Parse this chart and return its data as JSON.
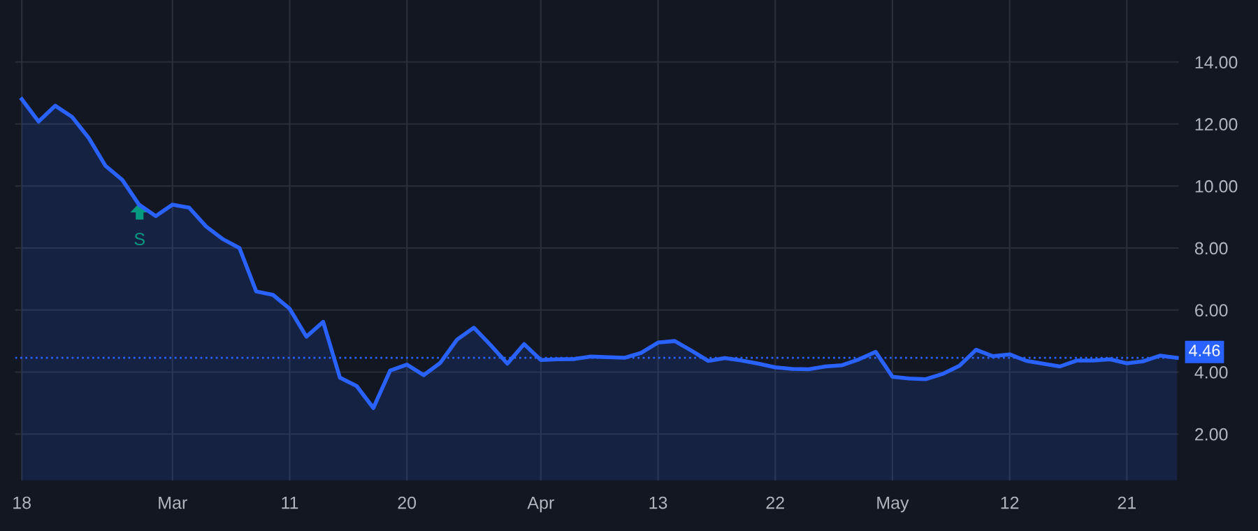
{
  "chart_data": {
    "type": "area",
    "categories": [
      "18",
      null,
      null,
      null,
      null,
      null,
      null,
      null,
      null,
      "Mar",
      null,
      null,
      null,
      null,
      null,
      null,
      "11",
      null,
      null,
      null,
      null,
      null,
      null,
      "20",
      null,
      null,
      null,
      null,
      null,
      null,
      null,
      "Apr",
      null,
      null,
      null,
      null,
      null,
      null,
      "13",
      null,
      null,
      null,
      null,
      null,
      null,
      "22",
      null,
      null,
      null,
      null,
      null,
      null,
      "May",
      null,
      null,
      null,
      null,
      null,
      null,
      "12",
      null,
      null,
      null,
      null,
      null,
      null,
      "21",
      null,
      null,
      null
    ],
    "series": [
      {
        "color": "#2962ff",
        "values": [
          12.8,
          12.08,
          12.59,
          12.23,
          11.55,
          10.65,
          10.2,
          9.4,
          9.03,
          9.4,
          9.3,
          8.7,
          8.29,
          8.0,
          6.6,
          6.49,
          6.04,
          5.14,
          5.62,
          3.82,
          3.55,
          2.84,
          4.05,
          4.24,
          3.9,
          4.3,
          5.05,
          5.43,
          4.87,
          4.27,
          4.9,
          4.39,
          4.41,
          4.42,
          4.5,
          4.48,
          4.46,
          4.62,
          4.95,
          5.0,
          4.69,
          4.36,
          4.45,
          4.37,
          4.27,
          4.15,
          4.1,
          4.09,
          4.18,
          4.22,
          4.41,
          4.65,
          3.85,
          3.79,
          3.77,
          3.94,
          4.2,
          4.72,
          4.51,
          4.57,
          4.36,
          4.27,
          4.18,
          4.37,
          4.37,
          4.41,
          4.28,
          4.35,
          4.53,
          4.46
        ]
      }
    ],
    "ylim": [
      0.5,
      16
    ],
    "yticks": [
      {
        "value": 2,
        "label": "2.00"
      },
      {
        "value": 4,
        "label": "4.00"
      },
      {
        "value": 6,
        "label": "6.00"
      },
      {
        "value": 8,
        "label": "8.00"
      },
      {
        "value": 10,
        "label": "10.00"
      },
      {
        "value": 12,
        "label": "12.00"
      },
      {
        "value": 14,
        "label": "14.00"
      }
    ],
    "ref_lines": [
      {
        "axis": "y",
        "value": 4.46,
        "label": "4.46",
        "color": "#2962ff",
        "line_style": "dotted"
      }
    ],
    "annotations": [
      "S"
    ],
    "grid": true,
    "legend": false,
    "marker": "none",
    "line_style": "solid"
  }
}
